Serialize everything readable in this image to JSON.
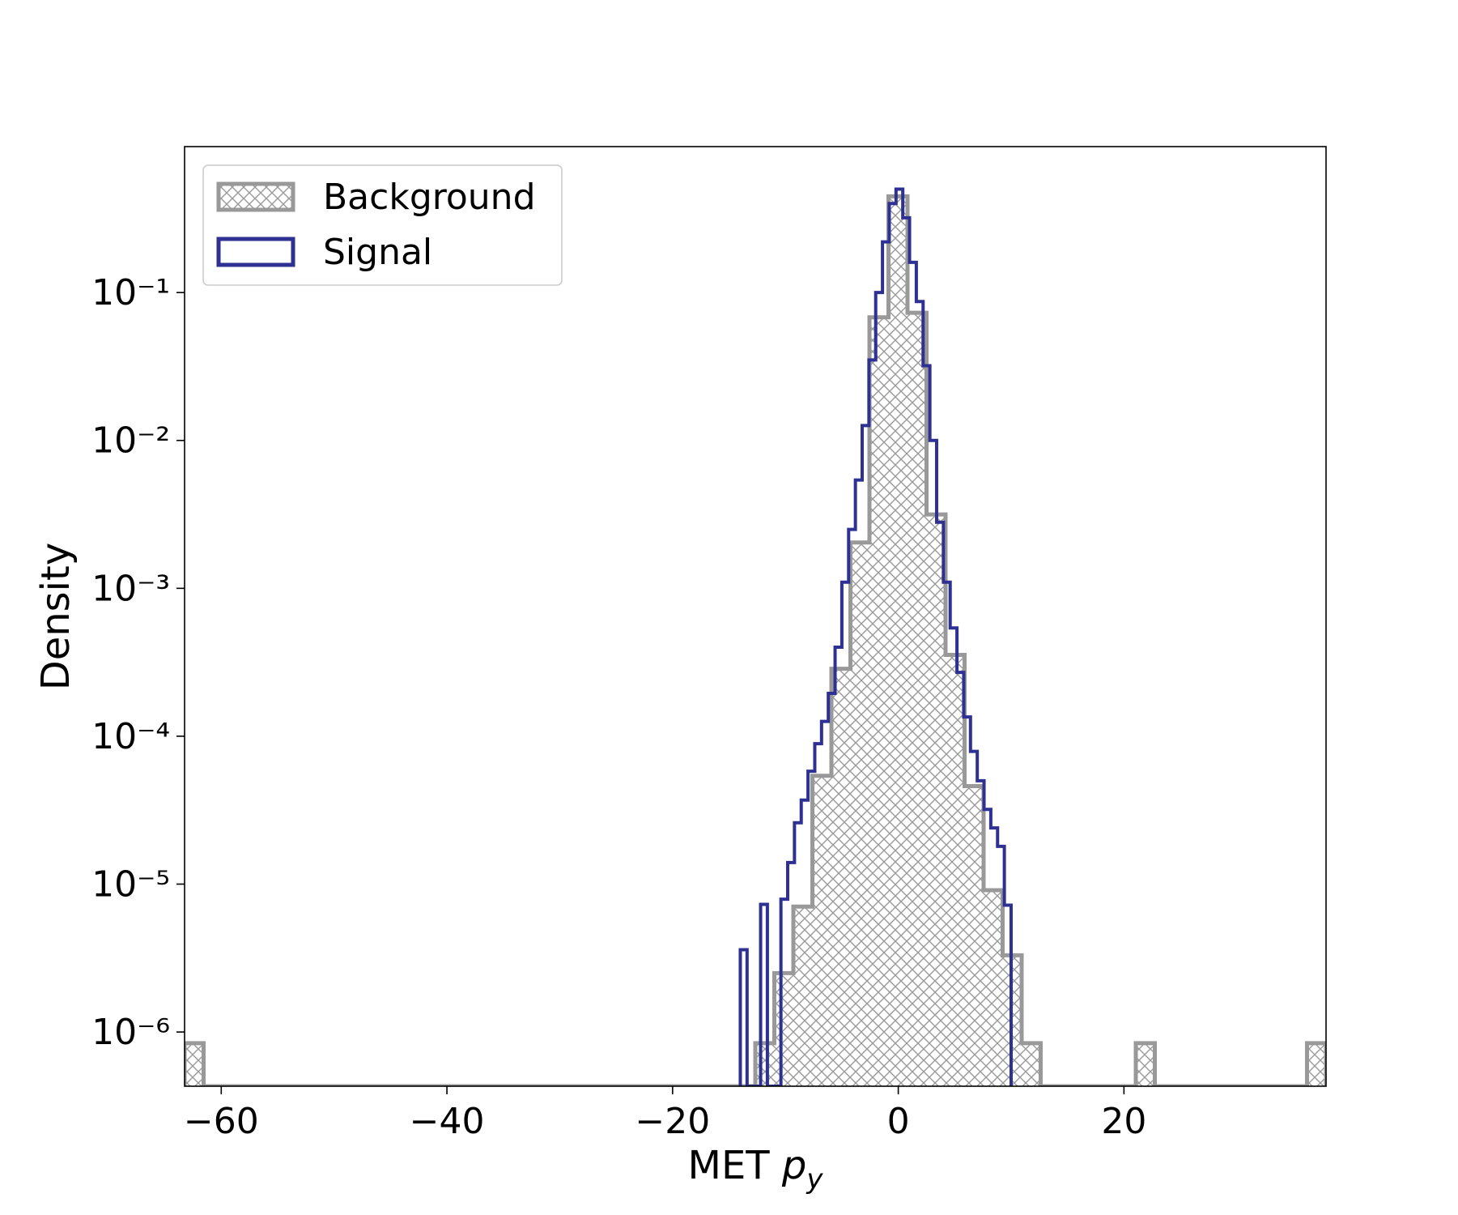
{
  "chart_data": {
    "type": "hist",
    "ylabel": "Density",
    "xlabel": {
      "text": "MET",
      "symbol": "p",
      "subscript": "y"
    },
    "yscale": "log",
    "legend": "upper left",
    "xlim": [
      -63.25,
      37.91
    ],
    "ylim": [
      4.3e-07,
      0.97
    ],
    "xticks": [
      {
        "value": -60,
        "label": "−60"
      },
      {
        "value": -40,
        "label": "−40"
      },
      {
        "value": -20,
        "label": "−20"
      },
      0,
      20
    ],
    "yticks": [
      {
        "value": 1e-06,
        "label": "10⁻⁶"
      },
      {
        "value": 1e-05,
        "label": "10⁻⁵"
      },
      {
        "value": 0.0001,
        "label": "10⁻⁴"
      },
      {
        "value": 0.001,
        "label": "10⁻³"
      },
      {
        "value": 0.01,
        "label": "10⁻²"
      },
      {
        "value": 0.1,
        "label": "10⁻¹"
      }
    ],
    "series": [
      {
        "name": "Background",
        "color": "#999999",
        "hatch": true,
        "bins": [
          -63.25,
          -61.564,
          -59.878,
          -58.192,
          -56.506,
          -54.82,
          -53.134,
          -51.448,
          -49.762,
          -48.076,
          -46.39,
          -44.704,
          -43.018,
          -41.332,
          -39.646,
          -37.96,
          -36.274,
          -34.588,
          -32.902,
          -31.216,
          -29.53,
          -27.844,
          -26.158,
          -24.472,
          -22.786,
          -21.1,
          -19.414,
          -17.728,
          -16.042,
          -14.356,
          -12.67,
          -10.984,
          -9.298,
          -7.612,
          -5.926,
          -4.24,
          -2.554,
          -0.868,
          0.818,
          2.504,
          4.19,
          5.876,
          7.562,
          9.248,
          10.934,
          12.62,
          14.306,
          15.992,
          17.678,
          19.364,
          21.05,
          22.736,
          24.422,
          26.108,
          27.794,
          29.48,
          31.166,
          32.852,
          34.538,
          36.224,
          37.91
        ],
        "values": [
          8.4e-07,
          0,
          0,
          0,
          0,
          0,
          0,
          0,
          0,
          0,
          0,
          0,
          0,
          0,
          0,
          0,
          0,
          0,
          0,
          0,
          0,
          0,
          0,
          0,
          0,
          0,
          0,
          0,
          0,
          0,
          8.4e-07,
          2.5e-06,
          7.05e-06,
          5.4e-05,
          0.000286,
          0.00204,
          0.068,
          0.447,
          0.073,
          0.00316,
          0.000355,
          4.6e-05,
          9.1e-06,
          3.3e-06,
          8.4e-07,
          0,
          0,
          0,
          0,
          0,
          8.4e-07,
          0,
          0,
          0,
          0,
          0,
          0,
          0,
          0,
          8.4e-07
        ]
      },
      {
        "name": "Signal",
        "color": "#2e3192",
        "hatch": false,
        "bins": [
          -14,
          -13.4,
          -12.8,
          -12.2,
          -11.6,
          -11,
          -10.4,
          -9.8,
          -9.2,
          -8.6,
          -8,
          -7.4,
          -6.8,
          -6.2,
          -5.6,
          -5,
          -4.4,
          -3.8,
          -3.2,
          -2.6,
          -2,
          -1.4,
          -0.8,
          -0.2,
          0.4,
          1,
          1.6,
          2.2,
          2.8,
          3.4,
          4,
          4.6,
          5.2,
          5.8,
          6.4,
          7,
          7.6,
          8.2,
          8.8,
          9.4,
          10
        ],
        "values": [
          3.6e-06,
          0,
          0,
          7.3e-06,
          0,
          0,
          7.9e-06,
          1.4e-05,
          2.6e-05,
          3.7e-05,
          5.8e-05,
          8.9e-05,
          0.000126,
          0.000195,
          0.0004,
          0.0011,
          0.0025,
          0.0054,
          0.0126,
          0.035,
          0.1,
          0.22,
          0.4,
          0.5,
          0.32,
          0.16,
          0.087,
          0.032,
          0.01,
          0.0028,
          0.0011,
          0.00054,
          0.00027,
          0.000135,
          7.9e-05,
          5e-05,
          3.2e-05,
          2.4e-05,
          1.8e-05,
          7.2e-06
        ]
      }
    ]
  }
}
